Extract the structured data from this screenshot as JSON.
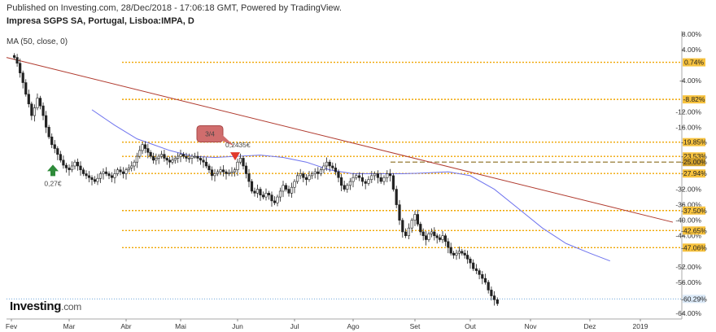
{
  "header": {
    "published": "Published on Investing.com, 28/Dec/2018 - 17:06:18 GMT, Powered by TradingView.",
    "symbol": "Impresa SGPS SA, Portugal, Lisboa:IMPA, D",
    "indicator": "MA (50, close, 0)"
  },
  "logo": {
    "brand": "Investing",
    "suffix": ".com"
  },
  "colors": {
    "up": "#ffffff",
    "down": "#222222",
    "ma": "#6f74ee",
    "trend": "#b03a2e",
    "level": "#f0a500",
    "current": "#6fa8dc",
    "arrow_up": "#2e8b3a",
    "arrow_down": "#e0392b",
    "badge": "#d06d6d"
  },
  "chart_data": {
    "type": "candlestick",
    "y_unit": "percent change",
    "ylim": [
      -64,
      8
    ],
    "y_ticks": [
      "8.00%",
      "4.00%",
      "-4.00%",
      "-12.00%",
      "-16.00%",
      "-32.00%",
      "-36.00%",
      "-40.00%",
      "-44.00%",
      "-52.00%",
      "-56.00%",
      "-64.00%"
    ],
    "x_ticks": [
      "Fev",
      "Mar",
      "Abr",
      "Mai",
      "Jun",
      "Jul",
      "Ago",
      "Set",
      "Out",
      "Nov",
      "Dez",
      "2019"
    ],
    "levels": [
      {
        "label": "0.74%",
        "value": 0.74,
        "style": "dotted"
      },
      {
        "label": "-8.82%",
        "value": -8.82,
        "style": "dotted"
      },
      {
        "label": "-19.85%",
        "value": -19.85,
        "style": "dotted"
      },
      {
        "label": "-23.53%",
        "value": -23.53,
        "style": "dotted"
      },
      {
        "label": "-25.00%",
        "value": -25.0,
        "style": "dashed"
      },
      {
        "label": "-27.94%",
        "value": -27.94,
        "style": "dotted"
      },
      {
        "label": "-37.50%",
        "value": -37.5,
        "style": "dotted"
      },
      {
        "label": "-42.65%",
        "value": -42.65,
        "style": "dotted"
      },
      {
        "label": "-47.06%",
        "value": -47.06,
        "style": "dotted"
      }
    ],
    "current": {
      "label": "-60.29%",
      "value": -60.29
    },
    "trendline": {
      "from": {
        "x": "Fev",
        "y": 2.0
      },
      "to": {
        "x": "2019",
        "y": -40.5
      }
    },
    "annotations": [
      {
        "text": "0,27€",
        "type": "arrow-up",
        "x": "Fev-late",
        "y": -26.5
      },
      {
        "text": "3/4",
        "type": "badge",
        "x": "Mai-late",
        "y": -17.5
      },
      {
        "text": "0,2435€",
        "type": "arrow-down",
        "x": "Jun",
        "y": -23.5
      }
    ],
    "series": [
      {
        "name": "MA (50, close, 0)",
        "type": "line",
        "x_month_index": [
          1.4,
          1.8,
          2.2,
          2.5,
          2.8,
          3.2,
          3.6,
          4.0,
          4.4,
          4.8,
          5.2,
          5.6,
          6.0,
          6.4,
          6.8,
          7.2,
          7.6,
          8.0,
          8.4,
          8.8,
          9.2,
          9.6,
          10.0,
          10.4
        ],
        "values": [
          -11.5,
          -15.5,
          -19,
          -20.5,
          -22,
          -23.5,
          -23.8,
          -23.5,
          -23.2,
          -23.8,
          -25,
          -27,
          -28,
          -28,
          -28,
          -27.8,
          -27.5,
          -28.5,
          -32,
          -37,
          -42,
          -46,
          -48.5,
          -50.5
        ]
      }
    ],
    "candles_month_index_start": 0.0,
    "candles_month_index_step": 0.05,
    "candles_close": [
      2.0,
      0.5,
      -2.0,
      -4.5,
      -7.5,
      -10.0,
      -13.0,
      -11.0,
      -8.5,
      -10.5,
      -13.0,
      -16.0,
      -18.5,
      -20.5,
      -21.5,
      -23.0,
      -24.5,
      -25.8,
      -26.5,
      -27.0,
      -26.0,
      -25.0,
      -26.0,
      -27.0,
      -28.0,
      -28.5,
      -29.0,
      -29.5,
      -30.0,
      -29.2,
      -28.0,
      -27.5,
      -28.0,
      -28.5,
      -29.0,
      -28.0,
      -27.0,
      -27.5,
      -28.0,
      -27.0,
      -26.5,
      -26.0,
      -25.0,
      -23.5,
      -22.0,
      -20.5,
      -21.5,
      -22.5,
      -23.5,
      -24.5,
      -24.0,
      -23.5,
      -23.0,
      -24.0,
      -24.5,
      -25.0,
      -24.5,
      -24.0,
      -23.5,
      -23.0,
      -23.5,
      -24.0,
      -24.0,
      -23.5,
      -23.5,
      -24.0,
      -24.5,
      -25.0,
      -26.0,
      -27.0,
      -28.5,
      -28.0,
      -27.5,
      -27.0,
      -27.5,
      -28.0,
      -27.8,
      -27.5,
      -27.0,
      -25.0,
      -24.0,
      -26.0,
      -28.0,
      -30.0,
      -32.5,
      -33.0,
      -32.0,
      -33.5,
      -34.0,
      -33.0,
      -33.5,
      -35.0,
      -35.5,
      -34.0,
      -32.5,
      -31.0,
      -32.0,
      -33.0,
      -31.5,
      -30.0,
      -28.5,
      -28.0,
      -29.0,
      -29.5,
      -28.5,
      -28.0,
      -27.5,
      -28.0,
      -27.0,
      -26.0,
      -25.0,
      -26.0,
      -26.5,
      -27.5,
      -29.0,
      -31.0,
      -32.0,
      -31.0,
      -30.0,
      -29.0,
      -28.5,
      -29.0,
      -30.0,
      -30.5,
      -29.5,
      -28.5,
      -28.0,
      -29.0,
      -30.0,
      -29.0,
      -28.0,
      -28.5,
      -32.0,
      -36.0,
      -40.0,
      -43.0,
      -44.0,
      -42.0,
      -40.0,
      -38.5,
      -41.0,
      -43.0,
      -44.0,
      -45.0,
      -43.5,
      -43.0,
      -44.0,
      -44.5,
      -45.0,
      -44.0,
      -45.5,
      -47.0,
      -48.5,
      -49.0,
      -48.5,
      -48.0,
      -48.5,
      -49.0,
      -50.0,
      -51.0,
      -52.5,
      -53.0,
      -54.0,
      -55.0,
      -56.0,
      -58.0,
      -59.5,
      -60.5,
      -61.5
    ]
  }
}
